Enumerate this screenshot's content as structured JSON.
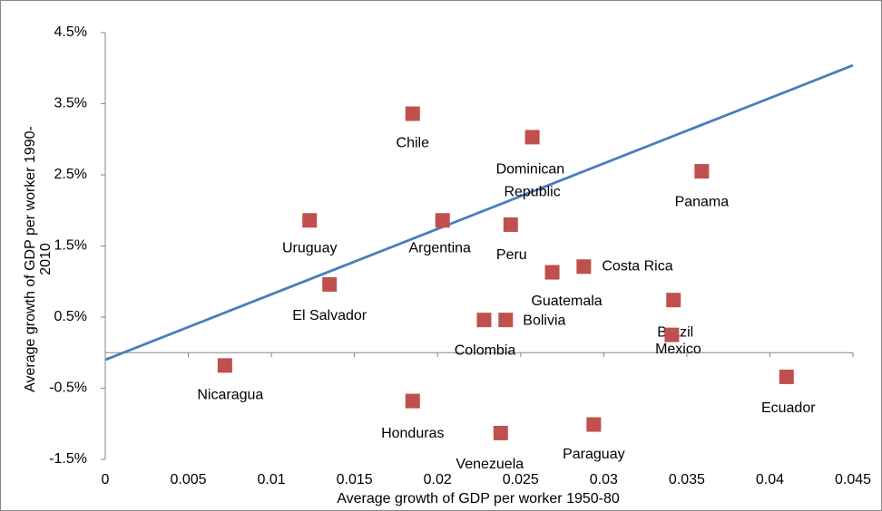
{
  "chart_data": {
    "type": "scatter",
    "x_label": "Average growth of GDP per worker 1950-80",
    "y_label": "Average growth of GDP per worker 1990-2010",
    "categories": [
      "Chile",
      "Dominican Republic",
      "Panama",
      "Uruguay",
      "Argentina",
      "Peru",
      "Costa Rica",
      "Guatemala",
      "El Salvador",
      "Brazil",
      "Colombia",
      "Bolivia",
      "Mexico",
      "Nicaragua",
      "Ecuador",
      "Honduras",
      "Paraguay",
      "Venezuela"
    ],
    "x": [
      0.0185,
      0.0257,
      0.0359,
      0.0123,
      0.0203,
      0.0244,
      0.0288,
      0.0269,
      0.0135,
      0.0342,
      0.0228,
      0.0241,
      0.0341,
      0.0072,
      0.041,
      0.0185,
      0.0294,
      0.0238
    ],
    "values": [
      3.36,
      3.03,
      2.55,
      1.86,
      1.86,
      1.8,
      1.21,
      1.13,
      0.96,
      0.74,
      0.46,
      0.46,
      0.25,
      -0.18,
      -0.34,
      -0.68,
      -1.01,
      -1.13
    ],
    "color": "#c0504d",
    "trendline": {
      "x": [
        0,
        0.045
      ],
      "y": [
        -0.1,
        4.04
      ],
      "color": "#4a7ebb"
    },
    "xlim": [
      0,
      0.045
    ],
    "xticks": [
      0,
      0.005,
      0.01,
      0.015,
      0.02,
      0.025,
      0.03,
      0.035,
      0.04,
      0.045
    ],
    "ylim": [
      -1.5,
      4.5
    ],
    "yticks": [
      {
        "value": -1.5,
        "label": "-1.5%"
      },
      {
        "value": -0.5,
        "label": "-0.5%"
      },
      {
        "value": 0.5,
        "label": "0.5%"
      },
      {
        "value": 1.5,
        "label": "1.5%"
      },
      {
        "value": 2.5,
        "label": "2.5%"
      },
      {
        "value": 3.5,
        "label": "3.5%"
      },
      {
        "value": 4.5,
        "label": "4.5%"
      }
    ],
    "grid": false
  }
}
